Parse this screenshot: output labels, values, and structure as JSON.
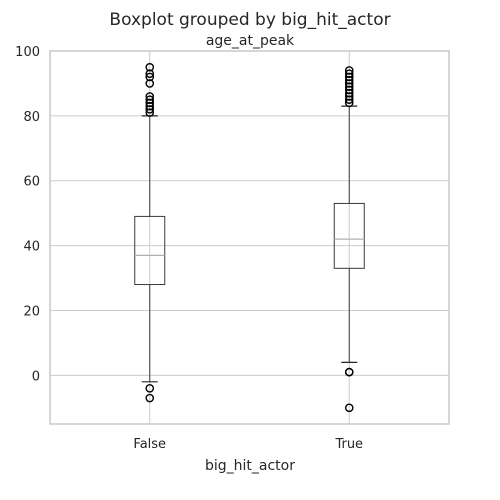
{
  "chart_data": {
    "type": "boxplot",
    "title": "Boxplot grouped by big_hit_actor",
    "subtitle": "age_at_peak",
    "xlabel": "big_hit_actor",
    "ylabel": "",
    "categories": [
      "False",
      "True"
    ],
    "ylim": [
      -15,
      100
    ],
    "yticks": [
      0,
      20,
      40,
      60,
      80,
      100
    ],
    "grid": true,
    "series": [
      {
        "category": "False",
        "whisker_low": -2,
        "q1": 28,
        "median": 37,
        "q3": 49,
        "whisker_high": 80,
        "outliers": [
          -4,
          -7,
          81,
          82,
          83,
          84,
          85,
          86,
          90,
          92,
          93,
          95
        ]
      },
      {
        "category": "True",
        "whisker_low": 4,
        "q1": 33,
        "median": 42,
        "q3": 53,
        "whisker_high": 83,
        "outliers": [
          1,
          1,
          -10,
          84,
          85,
          86,
          87,
          88,
          89,
          90,
          91,
          92,
          93,
          94
        ]
      }
    ]
  }
}
